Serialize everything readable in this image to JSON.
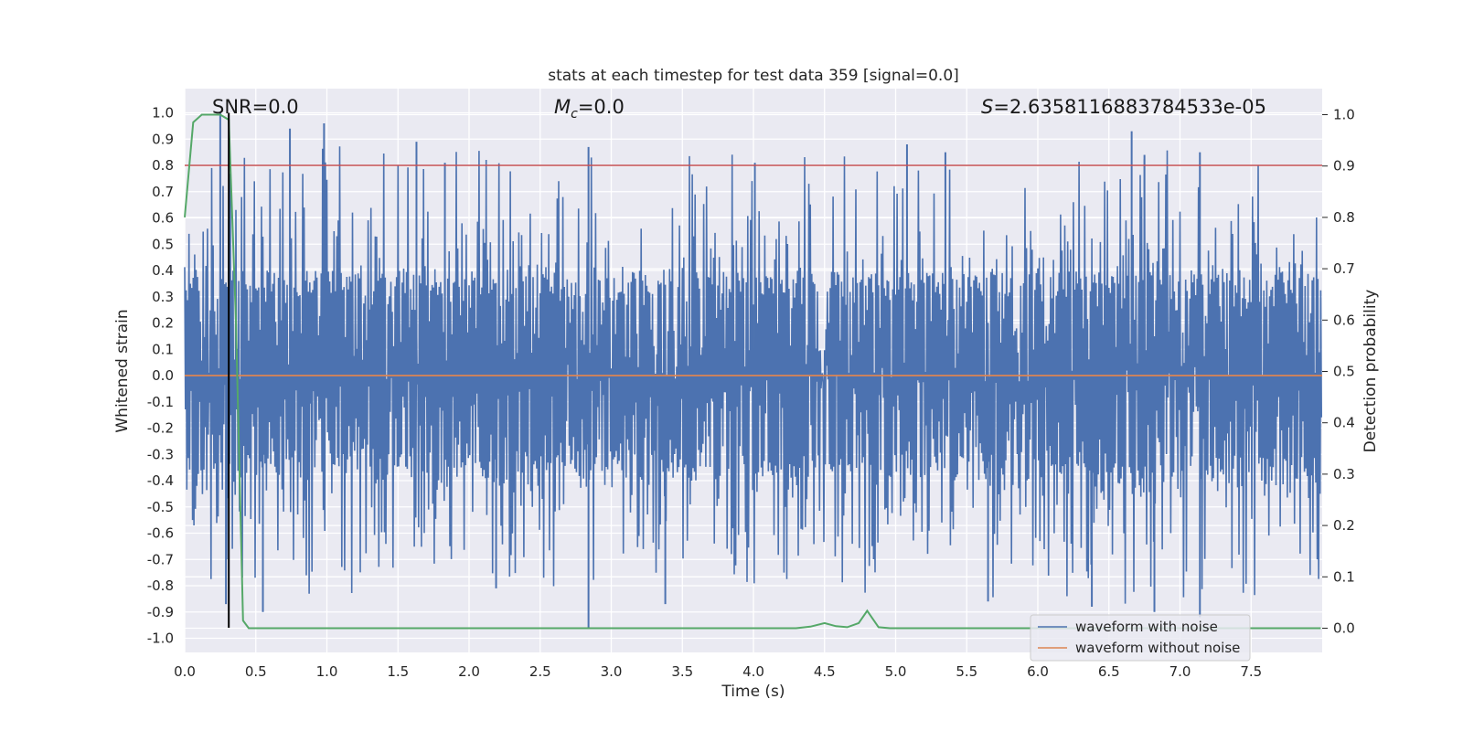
{
  "chart_data": {
    "type": "line",
    "title": "stats at each timestep for test data 359 [signal=0.0]",
    "xlabel": "Time (s)",
    "ylabel": "Whitened strain",
    "y2label": "Detection probability",
    "xlim": [
      0.0,
      8.0
    ],
    "ylim": [
      -1.05,
      1.05
    ],
    "y2lim": [
      -0.05,
      1.05
    ],
    "x_ticks": [
      "0.0",
      "0.5",
      "1.0",
      "1.5",
      "2.0",
      "2.5",
      "3.0",
      "3.5",
      "4.0",
      "4.5",
      "5.0",
      "5.5",
      "6.0",
      "6.5",
      "7.0",
      "7.5"
    ],
    "y_ticks": [
      "1.0",
      "0.9",
      "0.8",
      "0.7",
      "0.6",
      "0.5",
      "0.4",
      "0.3",
      "0.2",
      "0.1",
      "0.0",
      "-0.1",
      "-0.2",
      "-0.3",
      "-0.4",
      "-0.5",
      "-0.6",
      "-0.7",
      "-0.8",
      "-0.9",
      "-1.0"
    ],
    "y2_ticks": [
      "1.0",
      "0.9",
      "0.8",
      "0.7",
      "0.6",
      "0.5",
      "0.4",
      "0.3",
      "0.2",
      "0.1",
      "0.0"
    ],
    "grid": true,
    "background": "#eaeaf2",
    "annotations": {
      "snr": "SNR=0.0",
      "mc_symbol": "M",
      "mc_sub": "c",
      "mc_value": "=0.0",
      "s_symbol": "S",
      "s_value": "=2.6358116883784533e-05"
    },
    "legend": {
      "placement": "lower-right",
      "entries": [
        "waveform with noise",
        "waveform without noise"
      ]
    },
    "colors": {
      "noise": "#4c72b0",
      "clean": "#dd8452",
      "probability": "#55a868",
      "threshold": "#c44e52",
      "marker": "#000000"
    },
    "series": [
      {
        "name": "waveform with noise",
        "description_of_values": "dense random whitened noise, normalised to peak 1.0",
        "seed": 359,
        "x_range": [
          0.0,
          8.0
        ],
        "core_amplitude": 0.35,
        "peak_values": [
          {
            "x": 0.25,
            "y": 1.0
          },
          {
            "x": 0.29,
            "y": -0.87
          },
          {
            "x": 0.55,
            "y": -0.9
          },
          {
            "x": 0.74,
            "y": 0.94
          },
          {
            "x": 0.98,
            "y": 0.96
          },
          {
            "x": 1.63,
            "y": 0.89
          },
          {
            "x": 1.83,
            "y": 0.81
          },
          {
            "x": 2.19,
            "y": -0.81
          },
          {
            "x": 2.84,
            "y": 0.87
          },
          {
            "x": 2.84,
            "y": -0.96
          },
          {
            "x": 3.38,
            "y": -0.87
          },
          {
            "x": 4.01,
            "y": 0.81
          },
          {
            "x": 5.08,
            "y": 0.88
          },
          {
            "x": 5.35,
            "y": 0.85
          },
          {
            "x": 5.65,
            "y": -0.86
          },
          {
            "x": 6.38,
            "y": -0.88
          },
          {
            "x": 6.66,
            "y": 0.93
          },
          {
            "x": 6.75,
            "y": 0.84
          },
          {
            "x": 6.82,
            "y": -0.9
          },
          {
            "x": 7.14,
            "y": -0.92
          },
          {
            "x": 7.14,
            "y": 0.85
          }
        ]
      },
      {
        "name": "waveform without noise",
        "x": [
          0.0,
          8.0
        ],
        "y": [
          0.0,
          0.0
        ]
      },
      {
        "name": "detection probability",
        "axis": "right",
        "x": [
          0.0,
          0.06,
          0.12,
          0.18,
          0.25,
          0.31,
          0.36,
          0.41,
          0.45,
          0.5,
          4.3,
          4.4,
          4.5,
          4.58,
          4.66,
          4.74,
          4.8,
          4.88,
          4.96,
          7.99
        ],
        "y": [
          0.8,
          0.985,
          1.0,
          1.0,
          1.0,
          0.99,
          0.6,
          0.015,
          0.0,
          0.0,
          0.0,
          0.003,
          0.01,
          0.004,
          0.002,
          0.01,
          0.034,
          0.002,
          0.0,
          0.0
        ]
      }
    ],
    "threshold_y": 0.8,
    "marker_x": 0.31
  }
}
